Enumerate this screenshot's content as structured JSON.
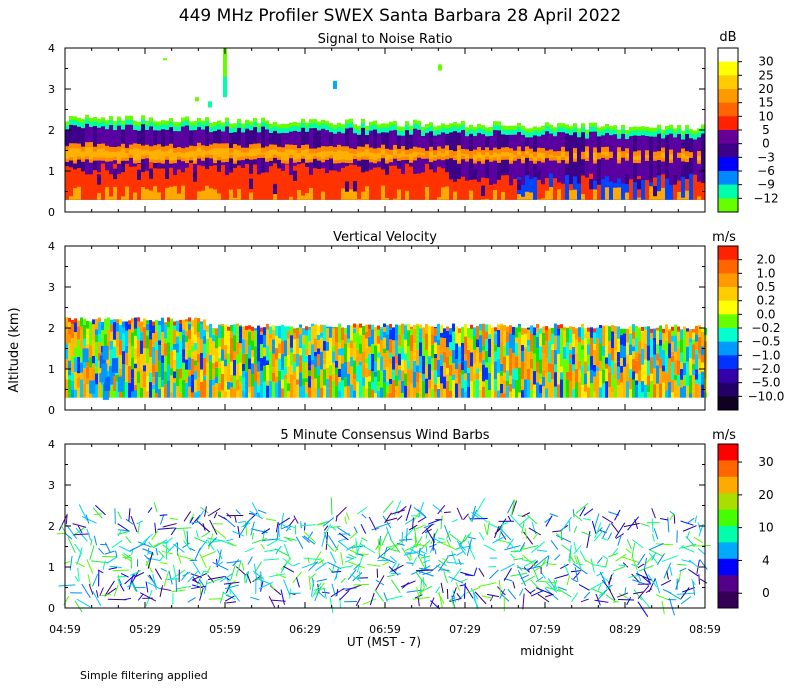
{
  "chart_data": {
    "type": "heatmap",
    "title": "449 MHz Profiler SWEX Santa Barbara 28 April 2022",
    "ylabel": "Altitude (km)",
    "xlabel": "UT  (MST - 7)",
    "x_tick_labels": [
      "04:59",
      "05:29",
      "05:59",
      "06:29",
      "06:59",
      "07:29",
      "07:59",
      "08:29",
      "08:59"
    ],
    "x_marker": "midnight",
    "y_tick_labels": [
      "0",
      "1",
      "2",
      "3",
      "4"
    ],
    "ylim": [
      0,
      4
    ],
    "footnote": "Simple filtering applied",
    "panels": [
      {
        "id": "snr",
        "title": "Signal to Noise Ratio",
        "type": "heatmap",
        "unit": "dB",
        "colorbar_labels": [
          "30",
          "25",
          "20",
          "15",
          "10",
          "5",
          "0",
          "−3",
          "−6",
          "−9",
          "−12"
        ],
        "colors": [
          "#ffffff",
          "#ffff00",
          "#ffcc00",
          "#ff9900",
          "#ff6600",
          "#ff2200",
          "#660099",
          "#3d0088",
          "#0000ff",
          "#0088ff",
          "#00ffaa",
          "#66ff00"
        ],
        "layers": [
          {
            "name": "green edge",
            "bottom_km": 1.9,
            "top_km": 2.4,
            "color": "#66ff00"
          },
          {
            "name": "cyan",
            "bottom_km": 1.85,
            "top_km": 2.2,
            "color": "#00ffaa"
          },
          {
            "name": "purple",
            "bottom_km": 0.3,
            "top_km": 2.0,
            "color": "#4b0096"
          },
          {
            "name": "orange",
            "bottom_km": 1.2,
            "top_km": 1.7,
            "color": "#ff8800"
          },
          {
            "name": "yellow",
            "bottom_km": 1.3,
            "top_km": 1.5,
            "color": "#ffbb00"
          },
          {
            "name": "red",
            "bottom_km": 0.3,
            "top_km": 1.0,
            "color": "#ff3300"
          }
        ]
      },
      {
        "id": "vv",
        "title": "Vertical Velocity",
        "type": "heatmap",
        "unit": "m/s",
        "colorbar_labels": [
          "2.0",
          "1.0",
          "0.5",
          "0.2",
          "0.0",
          "−0.2",
          "−0.5",
          "−1.0",
          "−2.0",
          "−5.0",
          "−10.0"
        ],
        "colors": [
          "#ff2200",
          "#ff6600",
          "#ff9900",
          "#ffcc00",
          "#ffff00",
          "#66ff00",
          "#00ffcc",
          "#0099ff",
          "#0033ff",
          "#3300aa",
          "#220066",
          "#110022"
        ],
        "top_km": 2.1
      },
      {
        "id": "wind",
        "title": "5 Minute Consensus Wind Barbs",
        "type": "scatter",
        "unit": "m/s",
        "colorbar_labels": [
          "30",
          "20",
          "10",
          "4",
          "0"
        ],
        "colors": [
          "#ff0000",
          "#ff6600",
          "#ffaa00",
          "#aadd00",
          "#44ff00",
          "#00ffaa",
          "#00aaff",
          "#0000ff",
          "#550088",
          "#330055"
        ],
        "bottom_km": 0.0,
        "top_km": 2.5
      }
    ]
  }
}
